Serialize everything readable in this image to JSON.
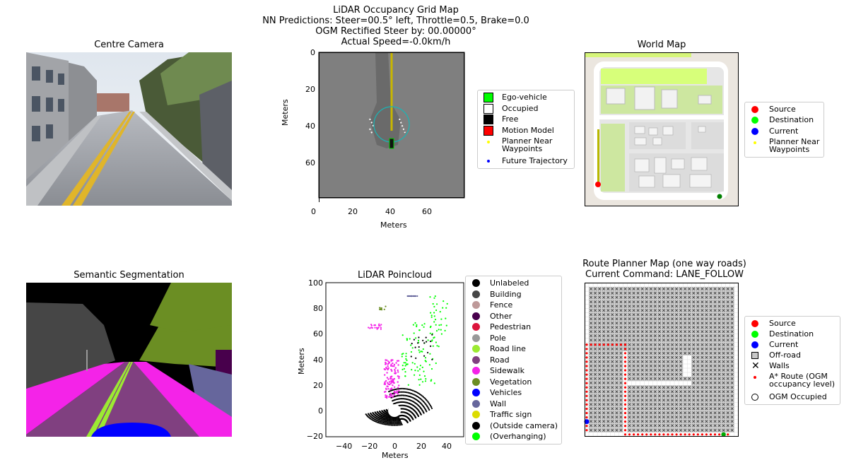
{
  "suptitle": [
    "LiDAR Occupancy Grid Map",
    "NN Predictions: Steer=00.5° left, Throttle=0.5, Brake=0.0",
    "OGM Rectified Steer by: 00.00000°",
    "Actual Speed=-0.0km/h"
  ],
  "panels": {
    "camera": {
      "title": "Centre Camera"
    },
    "ogm": {
      "xticks": [
        "0",
        "20",
        "40",
        "60"
      ],
      "yticks": [
        "0",
        "20",
        "40",
        "60"
      ],
      "xlabel": "Meters",
      "ylabel": "Meters",
      "legend": [
        {
          "label": "Ego-vehicle",
          "color": "#00ff00",
          "marker": "square"
        },
        {
          "label": "Occupied",
          "color": "#ffffff",
          "marker": "square"
        },
        {
          "label": "Free",
          "color": "#000000",
          "marker": "square"
        },
        {
          "label": "Motion Model",
          "color": "#ff0000",
          "marker": "square"
        },
        {
          "label": "Planner Near\nWaypoints",
          "color": "#ffff00",
          "marker": "dot"
        },
        {
          "label": "Future Trajectory",
          "color": "#0000ff",
          "marker": "dot"
        }
      ]
    },
    "world_map": {
      "title": "World Map",
      "legend": [
        {
          "label": "Source",
          "color": "#ff0000",
          "marker": "circle"
        },
        {
          "label": "Destination",
          "color": "#00ff00",
          "marker": "circle"
        },
        {
          "label": "Current",
          "color": "#0000ff",
          "marker": "circle"
        },
        {
          "label": "Planner Near\nWaypoints",
          "color": "#ffff00",
          "marker": "dot"
        }
      ]
    },
    "segmentation": {
      "title": "Semantic Segmentation"
    },
    "lidar": {
      "title": "LiDAR Poincloud",
      "xticks": [
        "−40",
        "−20",
        "0",
        "20",
        "40"
      ],
      "yticks": [
        "100",
        "80",
        "60",
        "40",
        "20",
        "0",
        "−20"
      ],
      "xlabel": "Meters",
      "ylabel": "Meters",
      "legend": [
        {
          "label": "Unlabeled",
          "color": "#000000"
        },
        {
          "label": "Building",
          "color": "#464646"
        },
        {
          "label": "Fence",
          "color": "#be9999"
        },
        {
          "label": "Other",
          "color": "#48004c"
        },
        {
          "label": "Pedestrian",
          "color": "#dc143c"
        },
        {
          "label": "Pole",
          "color": "#999999"
        },
        {
          "label": "Road line",
          "color": "#9cea32"
        },
        {
          "label": "Road",
          "color": "#804080"
        },
        {
          "label": "Sidewalk",
          "color": "#f423e8"
        },
        {
          "label": "Vegetation",
          "color": "#6b8e23"
        },
        {
          "label": "Vehicles",
          "color": "#0000ff"
        },
        {
          "label": "Wall",
          "color": "#66669c"
        },
        {
          "label": "Traffic sign",
          "color": "#dcdc00"
        },
        {
          "label": "(Outside camera)",
          "color": "#000000"
        },
        {
          "label": "(Overhanging)",
          "color": "#00ff00"
        }
      ]
    },
    "route_planner": {
      "title": [
        "Route Planner Map (one way roads)",
        "Current Command: LANE_FOLLOW"
      ],
      "legend": [
        {
          "label": "Source",
          "color": "#ff0000",
          "marker": "circle"
        },
        {
          "label": "Destination",
          "color": "#00ff00",
          "marker": "circle"
        },
        {
          "label": "Current",
          "color": "#0000ff",
          "marker": "circle"
        },
        {
          "label": "Off-road",
          "color": "#c8c8c8",
          "marker": "square"
        },
        {
          "label": "Walls",
          "color": "#000000",
          "marker": "x"
        },
        {
          "label": "A* Route (OGM\noccupancy level)",
          "color": "#ff0000",
          "marker": "dot"
        },
        {
          "label": "OGM Occupied",
          "color": "#ffffff",
          "marker": "ring"
        }
      ]
    }
  }
}
